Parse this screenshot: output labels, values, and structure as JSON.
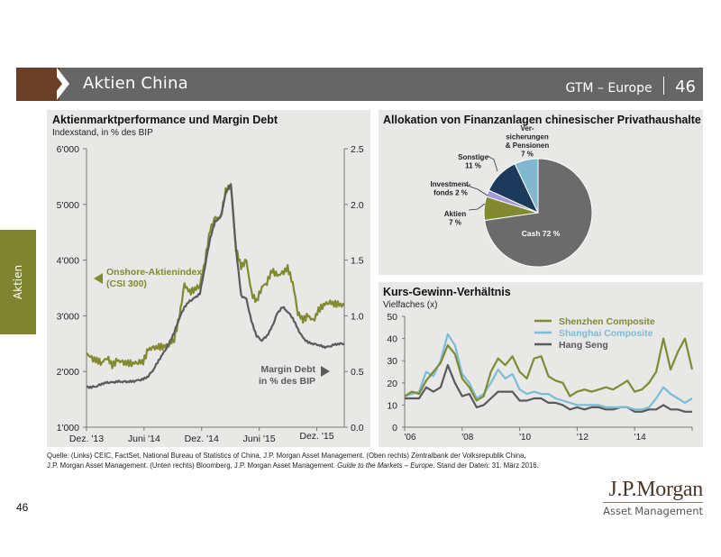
{
  "header": {
    "title": "Aktien China",
    "series_label": "GTM – Europe",
    "page": "46",
    "colors": {
      "tab": "#6b3f27",
      "bar": "#666666"
    }
  },
  "side_tab": {
    "label": "Aktien",
    "color": "#7f8431"
  },
  "left_panel": {
    "title": "Aktienmarktperformance und Margin Debt",
    "subtitle": "Indexstand, in % des BIP"
  },
  "top_right_panel": {
    "title": "Allokation von Finanzanlagen chinesischer Privathaushalte"
  },
  "bottom_right_panel": {
    "title": "Kurs-Gewinn-Verhältnis",
    "subtitle": "Vielfaches (x)"
  },
  "chart_data": [
    {
      "type": "line",
      "title": "Aktienmarktperformance und Margin Debt",
      "subtitle": "Indexstand, in % des BIP",
      "x_ticks": [
        "Dez. '13",
        "Juni '14",
        "Dez. '14",
        "Juni '15",
        "Dez. '15"
      ],
      "x_range": [
        "2013-12",
        "2016-03"
      ],
      "y_left": {
        "ticks": [
          "1'000",
          "2'000",
          "3'000",
          "4'000",
          "5'000",
          "6'000"
        ],
        "range": [
          1000,
          6000
        ]
      },
      "y_right": {
        "ticks": [
          "0.0",
          "0.5",
          "1.0",
          "1.5",
          "2.0",
          "2.5"
        ],
        "range": [
          0,
          2.5
        ]
      },
      "series": [
        {
          "name": "Onshore-Aktienindex (CSI 300)",
          "label_lines": [
            "Onshore-Aktienindex",
            "(CSI 300)"
          ],
          "axis": "left",
          "color": "#828a2f",
          "x": [
            0.0,
            0.02,
            0.04,
            0.06,
            0.08,
            0.1,
            0.12,
            0.14,
            0.16,
            0.18,
            0.2,
            0.22,
            0.24,
            0.26,
            0.28,
            0.3,
            0.32,
            0.34,
            0.36,
            0.38,
            0.4,
            0.42,
            0.44,
            0.46,
            0.48,
            0.5,
            0.52,
            0.54,
            0.56,
            0.58,
            0.6,
            0.62,
            0.64,
            0.66,
            0.68,
            0.7,
            0.72,
            0.74,
            0.76,
            0.78,
            0.8,
            0.82,
            0.84,
            0.86,
            0.88,
            0.9,
            0.92,
            0.94,
            0.96,
            0.98,
            1.0
          ],
          "values": [
            2330,
            2230,
            2200,
            2160,
            2260,
            2110,
            2200,
            2160,
            2150,
            2150,
            2170,
            2180,
            2400,
            2420,
            2440,
            2450,
            2480,
            2580,
            2980,
            3560,
            3420,
            3480,
            3550,
            4000,
            4550,
            4760,
            4750,
            5250,
            5340,
            4200,
            3880,
            3990,
            3400,
            3260,
            3520,
            3600,
            3820,
            3720,
            3760,
            3860,
            3600,
            3050,
            2930,
            3000,
            2900,
            3100,
            3200,
            3250,
            3220,
            3200,
            3180
          ],
          "end_value": 3200
        },
        {
          "name": "Margin Debt in % des BIP",
          "label_lines": [
            "Margin Debt",
            "in % des BIP"
          ],
          "axis": "right",
          "color": "#5b5b5e",
          "x": [
            0.0,
            0.02,
            0.04,
            0.06,
            0.08,
            0.1,
            0.12,
            0.14,
            0.16,
            0.18,
            0.2,
            0.22,
            0.24,
            0.26,
            0.28,
            0.3,
            0.32,
            0.34,
            0.36,
            0.38,
            0.4,
            0.42,
            0.44,
            0.46,
            0.48,
            0.5,
            0.52,
            0.54,
            0.56,
            0.58,
            0.6,
            0.62,
            0.64,
            0.66,
            0.68,
            0.7,
            0.72,
            0.74,
            0.76,
            0.78,
            0.8,
            0.82,
            0.84,
            0.86,
            0.88,
            0.9,
            0.92,
            0.94,
            0.96,
            0.98,
            1.0
          ],
          "values": [
            0.36,
            0.36,
            0.37,
            0.39,
            0.4,
            0.4,
            0.41,
            0.41,
            0.41,
            0.41,
            0.42,
            0.43,
            0.46,
            0.52,
            0.6,
            0.67,
            0.75,
            0.85,
            0.98,
            1.08,
            1.13,
            1.16,
            1.2,
            1.45,
            1.7,
            1.85,
            1.88,
            2.1,
            2.19,
            1.6,
            1.18,
            1.15,
            0.95,
            0.82,
            0.78,
            0.82,
            0.9,
            1.02,
            1.08,
            1.04,
            0.98,
            0.88,
            0.8,
            0.76,
            0.75,
            0.74,
            0.72,
            0.72,
            0.74,
            0.75,
            0.75
          ],
          "end_value": 0.75
        }
      ]
    },
    {
      "type": "pie",
      "title": "Allokation von Finanzanlagen chinesischer Privathaushalte",
      "slices": [
        {
          "label": "Cash",
          "display": "Cash 72 %",
          "value": 72,
          "color": "#6b6b6b"
        },
        {
          "label": "Aktien",
          "display_lines": [
            "Aktien",
            "7 %"
          ],
          "value": 7,
          "color": "#828a2f"
        },
        {
          "label": "Investmentfonds",
          "display_lines": [
            "Investment-",
            "fonds 2 %"
          ],
          "value": 2,
          "color": "#a39bd6"
        },
        {
          "label": "Sonstige",
          "display_lines": [
            "Sonstige",
            "11 %"
          ],
          "value": 11,
          "color": "#1d3a5a"
        },
        {
          "label": "Versicherungen & Pensionen",
          "display_lines": [
            "Ver-",
            "sicherungen",
            "& Pensionen",
            "7 %"
          ],
          "value": 7,
          "color": "#7fb8cf"
        }
      ]
    },
    {
      "type": "line",
      "title": "Kurs-Gewinn-Verhältnis",
      "ylabel": "Vielfaches (x)",
      "x_ticks": [
        "'06",
        "'08",
        "'10",
        "'12",
        "'14"
      ],
      "x_range": [
        2006,
        2016
      ],
      "y_ticks": [
        "0",
        "10",
        "20",
        "30",
        "40",
        "50"
      ],
      "ylim": [
        0,
        50
      ],
      "legend_position": "top-right",
      "x": [
        2006.0,
        2006.25,
        2006.5,
        2006.75,
        2007.0,
        2007.25,
        2007.5,
        2007.75,
        2008.0,
        2008.25,
        2008.5,
        2008.75,
        2009.0,
        2009.25,
        2009.5,
        2009.75,
        2010.0,
        2010.25,
        2010.5,
        2010.75,
        2011.0,
        2011.25,
        2011.5,
        2011.75,
        2012.0,
        2012.25,
        2012.5,
        2012.75,
        2013.0,
        2013.25,
        2013.5,
        2013.75,
        2014.0,
        2014.25,
        2014.5,
        2014.75,
        2015.0,
        2015.25,
        2015.5,
        2015.75,
        2016.0
      ],
      "series": [
        {
          "name": "Shenzhen Composite",
          "color": "#7f8a33",
          "values": [
            14,
            16,
            15,
            21,
            25,
            29,
            37,
            33,
            22,
            18,
            12,
            14,
            25,
            31,
            28,
            32,
            25,
            22,
            31,
            32,
            23,
            21,
            20,
            14,
            16,
            17,
            16,
            17,
            18,
            17,
            19,
            21,
            16,
            17,
            20,
            25,
            40,
            26,
            34,
            40,
            26
          ]
        },
        {
          "name": "Shanghai Composite",
          "color": "#7bbcd6",
          "values": [
            14,
            15,
            16,
            25,
            23,
            30,
            42,
            37,
            24,
            20,
            13,
            15,
            20,
            26,
            22,
            24,
            17,
            15,
            16,
            15,
            15,
            13,
            12,
            11,
            10,
            10,
            10,
            10,
            9,
            9,
            9,
            9,
            8,
            8,
            9,
            13,
            18,
            15,
            13,
            11,
            13
          ]
        },
        {
          "name": "Hang Seng",
          "color": "#5a5a5c",
          "values": [
            13,
            13,
            13,
            18,
            16,
            18,
            28,
            20,
            14,
            15,
            9,
            10,
            13,
            16,
            16,
            16,
            12,
            12,
            13,
            13,
            11,
            11,
            10,
            8,
            9,
            8,
            9,
            9,
            8,
            8,
            9,
            9,
            7,
            7,
            8,
            8,
            10,
            8,
            8,
            7,
            7
          ]
        }
      ]
    }
  ],
  "source": {
    "text_a": "Quelle: (Links) CEIC, FactSet, National Bureau of Statistics of China, J.P. Morgan Asset Management. (Oben rechts) Zentralbank der Volksrepublik China,",
    "text_b": "J.P. Morgan Asset Management. (Unten rechts) Bloomberg, J.P. Morgan Asset Management. ",
    "text_italic": "Guide to the Markets – Europe",
    "text_c": ". Stand der Daten: 31. März 2016."
  },
  "footer": {
    "page_number": "46",
    "logo_main": "J.P.Morgan",
    "logo_sub": "Asset Management"
  }
}
